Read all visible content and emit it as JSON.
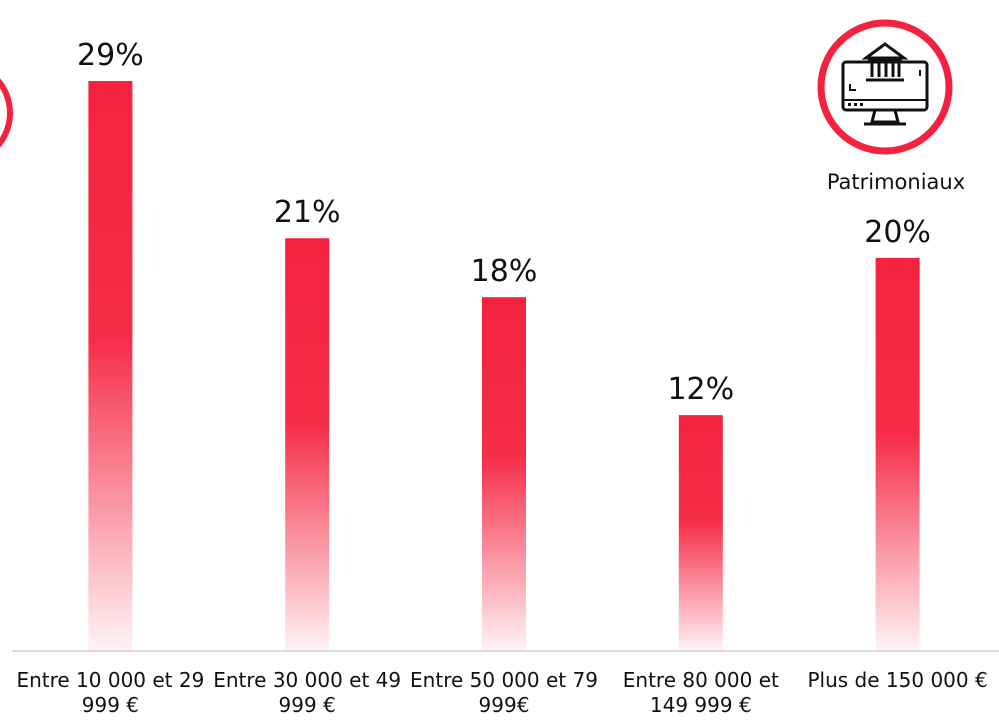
{
  "badge": {
    "label": "Patrimoniaux",
    "accent": "#f5223f"
  },
  "chart_data": {
    "type": "bar",
    "categories": [
      "Entre 10 000 et 29 999 €",
      "Entre 30 000 et 49 999 €",
      "Entre 50 000 et 79 999€",
      "Entre 80 000 et 149 999 €",
      "Plus de 150 000 €"
    ],
    "values": [
      29,
      21,
      18,
      12,
      20
    ],
    "value_labels": [
      "29%",
      "21%",
      "18%",
      "12%",
      "20%"
    ],
    "ylim": [
      0,
      29
    ],
    "grid": false,
    "bar_color": "#f5223f"
  }
}
